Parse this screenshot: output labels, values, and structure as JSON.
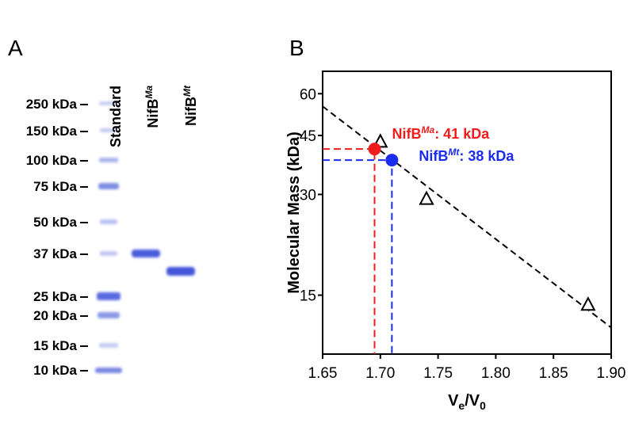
{
  "panel_a": {
    "label": "A",
    "lanes": [
      {
        "base": "Standard"
      },
      {
        "base": "NifB",
        "sup": "Ma"
      },
      {
        "base": "NifB",
        "sup": "Mt"
      }
    ],
    "markers": [
      "250 kDa",
      "150 kDa",
      "100 kDa",
      "75 kDa",
      "50 kDa",
      "37 kDa",
      "25 kDa",
      "20 kDa",
      "15 kDa",
      "10 kDa"
    ]
  },
  "chart_data": {
    "type": "scatter",
    "panel_label": "B",
    "y_label": "Molecular Mass (kDa)",
    "x_label": [
      {
        "text": "V"
      },
      {
        "text": "e",
        "sub": true
      },
      {
        "text": "/V"
      },
      {
        "text": "0",
        "sub": true
      }
    ],
    "xlim": [
      1.65,
      1.9
    ],
    "xticks": [
      1.65,
      {
        "value": 1.7,
        "label": "1.70"
      },
      1.75,
      {
        "value": 1.8,
        "label": "1.80"
      },
      1.85,
      {
        "value": 1.9,
        "label": "1.90"
      }
    ],
    "ylim": [
      10,
      70
    ],
    "log_y": true,
    "yticks": [
      15,
      30,
      45,
      60
    ],
    "series": [
      {
        "type": "line",
        "color": "#000000",
        "x": [
          1.65,
          1.9
        ],
        "values": [
          55,
          12
        ]
      },
      {
        "marker": "triangle",
        "color": "#000000",
        "x": [
          1.7,
          1.74,
          1.88
        ],
        "values": [
          43,
          29,
          14
        ]
      },
      {
        "marker": "circle",
        "color": "#ee1c1c",
        "guides": true,
        "x": [
          1.695
        ],
        "values": [
          41
        ],
        "label": {
          "base": "NifB",
          "sup": "Ma",
          "rest": ": 41 kDa"
        }
      },
      {
        "marker": "circle",
        "color": "#1c2cee",
        "guides": true,
        "x": [
          1.71
        ],
        "values": [
          38
        ],
        "label": {
          "base": "NifB",
          "sup": "Mt",
          "rest": ": 38 kDa"
        }
      }
    ]
  }
}
